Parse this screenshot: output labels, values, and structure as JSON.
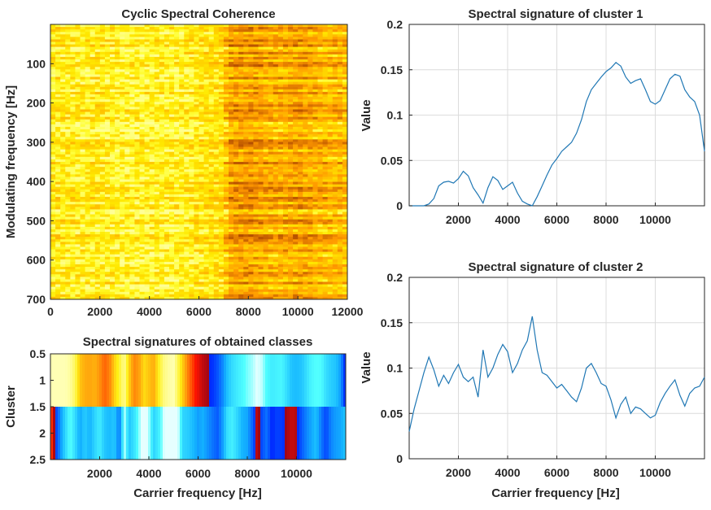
{
  "chart_data": [
    {
      "type": "heatmap",
      "title": "Cyclic Spectral Coherence",
      "xlabel": "",
      "ylabel": "Modulating frequency [Hz]",
      "xlim": [
        0,
        12000
      ],
      "ylim": [
        700,
        0
      ],
      "xticks": [
        0,
        2000,
        4000,
        6000,
        8000,
        10000,
        12000
      ],
      "xticklabels": [
        "0",
        "2000",
        "4000",
        "6000",
        "8000",
        "10000",
        "12000"
      ],
      "yticks": [
        100,
        200,
        300,
        400,
        500,
        600,
        700
      ],
      "yticklabels": [
        "100",
        "200",
        "300",
        "400",
        "500",
        "600",
        "700"
      ],
      "colormap": "hot",
      "column_profile": {
        "x": [
          0,
          1000,
          2000,
          3000,
          4000,
          5000,
          6000,
          7000,
          7200,
          8000,
          9000,
          10000,
          11000,
          12000
        ],
        "intensity": [
          0.78,
          0.82,
          0.8,
          0.85,
          0.83,
          0.84,
          0.78,
          0.74,
          0.5,
          0.45,
          0.55,
          0.5,
          0.58,
          0.6
        ]
      }
    },
    {
      "type": "heatmap",
      "title": "Spectral signatures of obtained classes",
      "xlabel": "Carrier frequency [Hz]",
      "ylabel": "Cluster",
      "xlim": [
        0,
        12000
      ],
      "ylim": [
        2.5,
        0.5
      ],
      "xticks": [
        2000,
        4000,
        6000,
        8000,
        10000
      ],
      "xticklabels": [
        "2000",
        "4000",
        "6000",
        "8000",
        "10000"
      ],
      "yticks": [
        0.5,
        1,
        1.5,
        2,
        2.5
      ],
      "yticklabels": [
        "0.5",
        "1",
        "1.5",
        "2",
        "2.5"
      ],
      "colormap": "jet-like",
      "rows": [
        "cluster 1",
        "cluster 2"
      ]
    },
    {
      "type": "line",
      "title": "Spectral signature of cluster 1",
      "xlabel": "",
      "ylabel": "Value",
      "xlim": [
        0,
        12000
      ],
      "ylim": [
        0,
        0.2
      ],
      "grid": true,
      "xticks": [
        2000,
        4000,
        6000,
        8000,
        10000
      ],
      "xticklabels": [
        "2000",
        "4000",
        "6000",
        "8000",
        "10000"
      ],
      "yticks": [
        0,
        0.05,
        0.1,
        0.15,
        0.2
      ],
      "yticklabels": [
        "0",
        "0.05",
        "0.1",
        "0.15",
        "0.2"
      ],
      "color": "#1f77b4",
      "x": [
        0,
        300,
        600,
        800,
        1000,
        1200,
        1400,
        1600,
        1800,
        2000,
        2200,
        2400,
        2600,
        2800,
        3000,
        3200,
        3400,
        3600,
        3800,
        4000,
        4200,
        4400,
        4600,
        4800,
        5000,
        5200,
        5400,
        5600,
        5800,
        6000,
        6200,
        6400,
        6600,
        6800,
        7000,
        7200,
        7400,
        7600,
        7800,
        8000,
        8200,
        8400,
        8600,
        8800,
        9000,
        9200,
        9400,
        9600,
        9800,
        10000,
        10200,
        10400,
        10600,
        10800,
        11000,
        11200,
        11400,
        11600,
        11800,
        12000
      ],
      "y": [
        0,
        0,
        0,
        0.002,
        0.008,
        0.022,
        0.026,
        0.027,
        0.025,
        0.03,
        0.038,
        0.033,
        0.02,
        0.012,
        0.003,
        0.02,
        0.032,
        0.028,
        0.018,
        0.022,
        0.026,
        0.014,
        0.005,
        0.002,
        0.0,
        0.01,
        0.022,
        0.034,
        0.045,
        0.052,
        0.06,
        0.065,
        0.07,
        0.08,
        0.095,
        0.115,
        0.128,
        0.135,
        0.142,
        0.148,
        0.152,
        0.158,
        0.154,
        0.142,
        0.135,
        0.138,
        0.14,
        0.128,
        0.115,
        0.112,
        0.116,
        0.128,
        0.14,
        0.145,
        0.143,
        0.128,
        0.12,
        0.115,
        0.1,
        0.06
      ]
    },
    {
      "type": "line",
      "title": "Spectral signature of cluster 2",
      "xlabel": "Carrier frequency [Hz]",
      "ylabel": "Value",
      "xlim": [
        0,
        12000
      ],
      "ylim": [
        0,
        0.2
      ],
      "grid": true,
      "xticks": [
        2000,
        4000,
        6000,
        8000,
        10000
      ],
      "xticklabels": [
        "2000",
        "4000",
        "6000",
        "8000",
        "10000"
      ],
      "yticks": [
        0,
        0.05,
        0.1,
        0.15,
        0.2
      ],
      "yticklabels": [
        "0",
        "0.05",
        "0.1",
        "0.15",
        "0.2"
      ],
      "color": "#1f77b4",
      "x": [
        0,
        200,
        400,
        600,
        800,
        1000,
        1200,
        1400,
        1600,
        1800,
        2000,
        2200,
        2400,
        2600,
        2800,
        3000,
        3200,
        3400,
        3600,
        3800,
        4000,
        4200,
        4400,
        4600,
        4800,
        5000,
        5200,
        5400,
        5600,
        5800,
        6000,
        6200,
        6400,
        6600,
        6800,
        7000,
        7200,
        7400,
        7600,
        7800,
        8000,
        8200,
        8400,
        8600,
        8800,
        9000,
        9200,
        9400,
        9600,
        9800,
        10000,
        10200,
        10400,
        10600,
        10800,
        11000,
        11200,
        11400,
        11600,
        11800,
        12000
      ],
      "y": [
        0.03,
        0.055,
        0.075,
        0.095,
        0.112,
        0.098,
        0.08,
        0.092,
        0.083,
        0.095,
        0.104,
        0.09,
        0.085,
        0.09,
        0.068,
        0.12,
        0.09,
        0.1,
        0.115,
        0.126,
        0.118,
        0.095,
        0.105,
        0.12,
        0.13,
        0.157,
        0.12,
        0.095,
        0.092,
        0.085,
        0.078,
        0.082,
        0.075,
        0.068,
        0.063,
        0.078,
        0.1,
        0.105,
        0.095,
        0.083,
        0.08,
        0.065,
        0.045,
        0.06,
        0.068,
        0.05,
        0.057,
        0.055,
        0.05,
        0.045,
        0.048,
        0.062,
        0.072,
        0.08,
        0.087,
        0.07,
        0.058,
        0.072,
        0.078,
        0.08,
        0.09
      ]
    }
  ]
}
